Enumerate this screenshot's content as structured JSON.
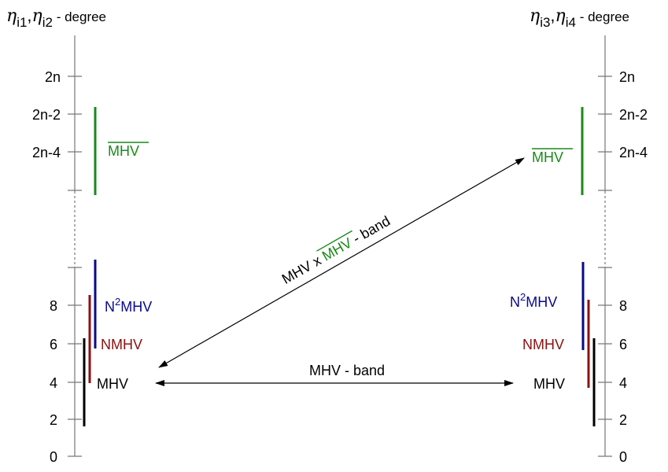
{
  "axis_left": {
    "sym1": "η",
    "sub1": "i1",
    "comma": ",",
    "sym2": "η",
    "sub2": "i2",
    "suffix": " - degree",
    "ticks": [
      "2n",
      "2n-2",
      "2n-4",
      "8",
      "6",
      "4",
      "2",
      "0"
    ]
  },
  "axis_right": {
    "sym1": "η",
    "sub1": "i3",
    "comma": ",",
    "sym2": "η",
    "sub2": "i4",
    "suffix": " - degree",
    "ticks": [
      "2n",
      "2n-2",
      "2n-4",
      "8",
      "6",
      "4",
      "2",
      "0"
    ]
  },
  "labels": {
    "mhvbar": "MHV",
    "n2_prefix": "N",
    "n2_sup": "2",
    "n2_suffix": "MHV",
    "nmhv": "NMHV",
    "mhv": "MHV"
  },
  "arrows": {
    "mhv_band": "MHV - band",
    "diag_prefix": "MHV x ",
    "diag_bar": "MHV",
    "diag_suffix": " - band"
  },
  "colors": {
    "green": "#1a8a1a",
    "blue": "#0a0a8c",
    "darkred": "#8c1010",
    "black": "#000000",
    "axis": "#777777"
  }
}
